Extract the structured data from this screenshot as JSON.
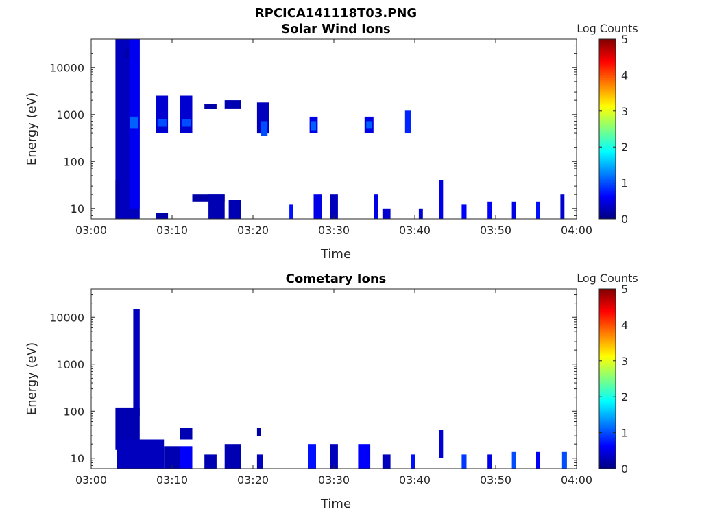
{
  "figure_title": "RPCICA141118T03.PNG",
  "chart_data": [
    {
      "type": "heatmap",
      "title": "Solar Wind Ions",
      "xlabel": "Time",
      "ylabel": "Energy (eV)",
      "x_ticks": [
        "03:00",
        "03:10",
        "03:20",
        "03:30",
        "03:40",
        "03:50",
        "04:00"
      ],
      "y_ticks": [
        "10",
        "100",
        "1000",
        "10000"
      ],
      "y_scale": "log",
      "xlim": [
        "03:00",
        "04:00"
      ],
      "ylim": [
        6,
        40000
      ],
      "colorbar": {
        "label": "Log Counts",
        "ticks": [
          "0",
          "1",
          "2",
          "3",
          "4",
          "5"
        ],
        "range": [
          0,
          5
        ],
        "colormap": "jet"
      },
      "patches": [
        {
          "t": [
            3.0,
            6.0
          ],
          "e": [
            6,
            40000
          ],
          "v": 0.3
        },
        {
          "t": [
            4.7,
            6.0
          ],
          "e": [
            10,
            40000
          ],
          "v": 0.55
        },
        {
          "t": [
            4.8,
            5.8
          ],
          "e": [
            500,
            900
          ],
          "v": 1.1
        },
        {
          "t": [
            4.2,
            4.7
          ],
          "e": [
            16000,
            25000
          ],
          "v": 0.2
        },
        {
          "t": [
            3.0,
            3.5
          ],
          "e": [
            6,
            40
          ],
          "v": 0.2
        },
        {
          "t": [
            8.0,
            9.5
          ],
          "e": [
            400,
            2500
          ],
          "v": 0.4
        },
        {
          "t": [
            8.2,
            9.3
          ],
          "e": [
            550,
            800
          ],
          "v": 1.0
        },
        {
          "t": [
            11.0,
            12.5
          ],
          "e": [
            400,
            2500
          ],
          "v": 0.4
        },
        {
          "t": [
            11.2,
            12.3
          ],
          "e": [
            550,
            800
          ],
          "v": 1.0
        },
        {
          "t": [
            14.0,
            15.5
          ],
          "e": [
            1300,
            1700
          ],
          "v": 0.2
        },
        {
          "t": [
            16.5,
            18.5
          ],
          "e": [
            1300,
            2000
          ],
          "v": 0.25
        },
        {
          "t": [
            20.5,
            22.0
          ],
          "e": [
            400,
            1800
          ],
          "v": 0.3
        },
        {
          "t": [
            21.0,
            21.8
          ],
          "e": [
            350,
            700
          ],
          "v": 1.0
        },
        {
          "t": [
            27.0,
            28.0
          ],
          "e": [
            400,
            900
          ],
          "v": 0.5
        },
        {
          "t": [
            27.2,
            27.8
          ],
          "e": [
            450,
            700
          ],
          "v": 1.1
        },
        {
          "t": [
            33.8,
            34.9
          ],
          "e": [
            400,
            900
          ],
          "v": 0.5
        },
        {
          "t": [
            34.0,
            34.7
          ],
          "e": [
            500,
            700
          ],
          "v": 1.1
        },
        {
          "t": [
            38.8,
            39.5
          ],
          "e": [
            400,
            1200
          ],
          "v": 0.8
        },
        {
          "t": [
            8.0,
            9.5
          ],
          "e": [
            6,
            8
          ],
          "v": 0.2
        },
        {
          "t": [
            12.5,
            16.5
          ],
          "e": [
            14,
            20
          ],
          "v": 0.2
        },
        {
          "t": [
            14.5,
            16.5
          ],
          "e": [
            6,
            20
          ],
          "v": 0.25
        },
        {
          "t": [
            17.0,
            18.5
          ],
          "e": [
            6,
            15
          ],
          "v": 0.25
        },
        {
          "t": [
            24.5,
            25.0
          ],
          "e": [
            6,
            12
          ],
          "v": 0.7
        },
        {
          "t": [
            27.5,
            28.5
          ],
          "e": [
            6,
            20
          ],
          "v": 0.5
        },
        {
          "t": [
            29.5,
            30.5
          ],
          "e": [
            6,
            20
          ],
          "v": 0.3
        },
        {
          "t": [
            35.0,
            35.5
          ],
          "e": [
            6,
            20
          ],
          "v": 0.5
        },
        {
          "t": [
            36.0,
            37.0
          ],
          "e": [
            6,
            10
          ],
          "v": 0.4
        },
        {
          "t": [
            40.5,
            41.0
          ],
          "e": [
            6,
            10
          ],
          "v": 0.4
        },
        {
          "t": [
            43.0,
            43.5
          ],
          "e": [
            6,
            40
          ],
          "v": 0.5
        },
        {
          "t": [
            45.8,
            46.4
          ],
          "e": [
            6,
            12
          ],
          "v": 0.6
        },
        {
          "t": [
            49.0,
            49.5
          ],
          "e": [
            6,
            14
          ],
          "v": 0.6
        },
        {
          "t": [
            52.0,
            52.5
          ],
          "e": [
            6,
            14
          ],
          "v": 0.5
        },
        {
          "t": [
            55.0,
            55.5
          ],
          "e": [
            6,
            14
          ],
          "v": 0.7
        },
        {
          "t": [
            58.0,
            58.5
          ],
          "e": [
            6,
            20
          ],
          "v": 0.4
        }
      ]
    },
    {
      "type": "heatmap",
      "title": "Cometary Ions",
      "xlabel": "Time",
      "ylabel": "Energy (eV)",
      "x_ticks": [
        "03:00",
        "03:10",
        "03:20",
        "03:30",
        "03:40",
        "03:50",
        "04:00"
      ],
      "y_ticks": [
        "10",
        "100",
        "1000",
        "10000"
      ],
      "y_scale": "log",
      "xlim": [
        "03:00",
        "04:00"
      ],
      "ylim": [
        6,
        40000
      ],
      "colorbar": {
        "label": "Log Counts",
        "ticks": [
          "0",
          "1",
          "2",
          "3",
          "4",
          "5"
        ],
        "range": [
          0,
          5
        ],
        "colormap": "jet"
      },
      "patches": [
        {
          "t": [
            5.2,
            6.0
          ],
          "e": [
            80,
            15000
          ],
          "v": 0.3
        },
        {
          "t": [
            3.0,
            6.0
          ],
          "e": [
            15,
            120
          ],
          "v": 0.25
        },
        {
          "t": [
            3.2,
            9.0
          ],
          "e": [
            6,
            25
          ],
          "v": 0.3
        },
        {
          "t": [
            9.0,
            11.0
          ],
          "e": [
            6,
            18
          ],
          "v": 0.25
        },
        {
          "t": [
            11.0,
            12.5
          ],
          "e": [
            25,
            45
          ],
          "v": 0.25
        },
        {
          "t": [
            11.0,
            12.5
          ],
          "e": [
            6,
            18
          ],
          "v": 0.6
        },
        {
          "t": [
            14.0,
            15.5
          ],
          "e": [
            6,
            12
          ],
          "v": 0.25
        },
        {
          "t": [
            16.5,
            18.5
          ],
          "e": [
            6,
            20
          ],
          "v": 0.25
        },
        {
          "t": [
            20.5,
            21.2
          ],
          "e": [
            6,
            12
          ],
          "v": 0.3
        },
        {
          "t": [
            26.8,
            27.8
          ],
          "e": [
            6,
            20
          ],
          "v": 0.7
        },
        {
          "t": [
            29.5,
            30.5
          ],
          "e": [
            6,
            20
          ],
          "v": 0.3
        },
        {
          "t": [
            33.0,
            34.5
          ],
          "e": [
            6,
            20
          ],
          "v": 0.6
        },
        {
          "t": [
            36.0,
            37.0
          ],
          "e": [
            6,
            12
          ],
          "v": 0.3
        },
        {
          "t": [
            39.5,
            40.0
          ],
          "e": [
            6,
            12
          ],
          "v": 0.7
        },
        {
          "t": [
            43.0,
            43.5
          ],
          "e": [
            10,
            40
          ],
          "v": 0.4
        },
        {
          "t": [
            45.8,
            46.4
          ],
          "e": [
            6,
            12
          ],
          "v": 0.9
        },
        {
          "t": [
            49.0,
            49.5
          ],
          "e": [
            6,
            12
          ],
          "v": 0.5
        },
        {
          "t": [
            52.0,
            52.5
          ],
          "e": [
            6,
            14
          ],
          "v": 1.0
        },
        {
          "t": [
            55.0,
            55.5
          ],
          "e": [
            6,
            14
          ],
          "v": 0.6
        },
        {
          "t": [
            58.2,
            58.8
          ],
          "e": [
            6,
            14
          ],
          "v": 1.0
        },
        {
          "t": [
            20.5,
            21.0
          ],
          "e": [
            30,
            45
          ],
          "v": 0.2
        }
      ]
    }
  ]
}
